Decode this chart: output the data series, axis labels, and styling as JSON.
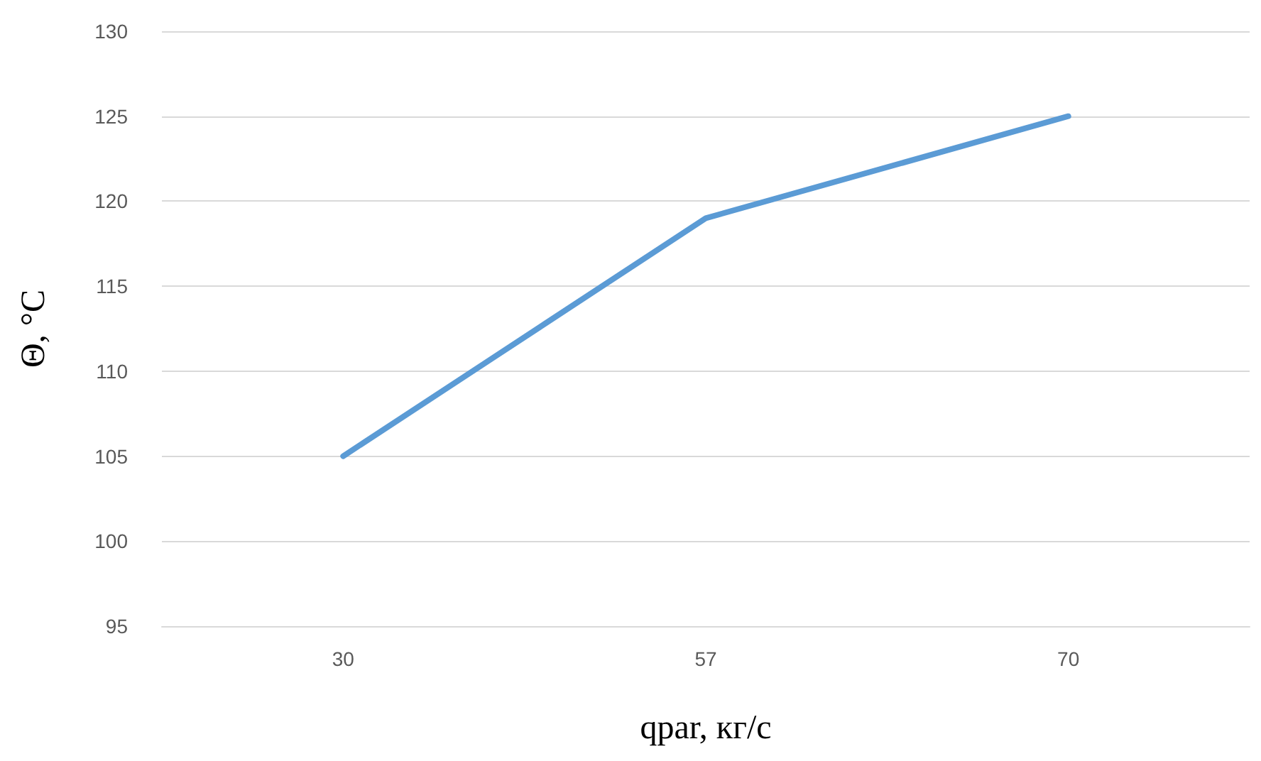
{
  "chart_data": {
    "type": "line",
    "xlabel": "qpar, кг/с",
    "ylabel": "Θ, °C",
    "categories": [
      "30",
      "57",
      "70"
    ],
    "series": [
      {
        "color": "#5b9bd5",
        "values": [
          105,
          119,
          125
        ]
      }
    ],
    "ylim": [
      95,
      130
    ],
    "yticks": [
      95,
      100,
      105,
      110,
      115,
      120,
      125,
      130
    ],
    "grid": "y",
    "marker": "none",
    "line_style": "solid"
  }
}
